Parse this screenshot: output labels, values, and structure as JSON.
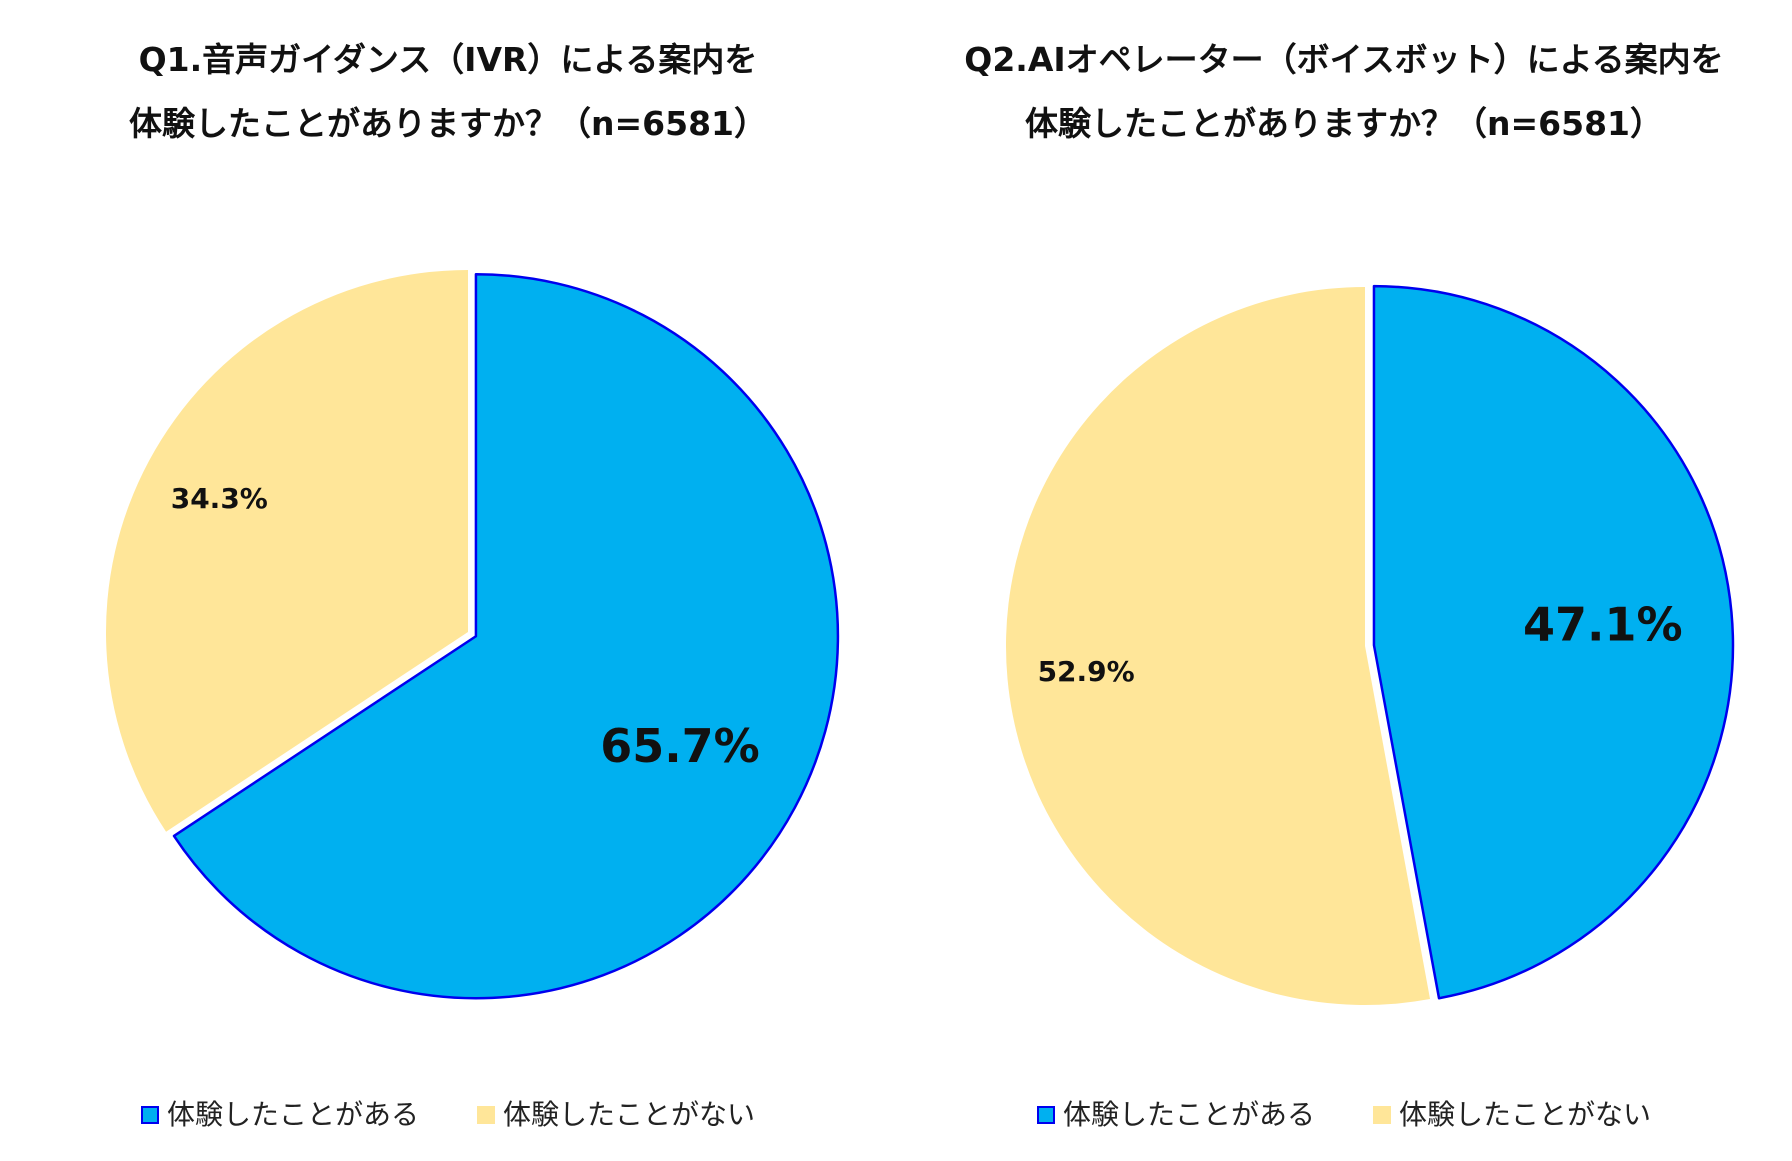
{
  "chart_data": [
    {
      "type": "pie",
      "title_lines": [
        "Q1.音声ガイダンス（IVR）による案内を",
        "体験したことがありますか？（n=6581）"
      ],
      "slices": [
        {
          "label": "体験したことがある",
          "value": 65.7,
          "value_label": "65.7%",
          "color": "#00B0F0",
          "outline": "#0000EE",
          "label_emphasis": "large",
          "exploded": true
        },
        {
          "label": "体験したことがない",
          "value": 34.3,
          "value_label": "34.3%",
          "color": "#FFE699",
          "outline": "",
          "label_emphasis": "normal",
          "exploded": false
        }
      ],
      "legend": {
        "position": "bottom",
        "entries": [
          "体験したことがある",
          "体験したことがない"
        ]
      }
    },
    {
      "type": "pie",
      "title_lines": [
        "Q2.AIオペレーター（ボイスボット）による案内を",
        "体験したことがありますか？（n=6581）"
      ],
      "slices": [
        {
          "label": "体験したことがある",
          "value": 47.1,
          "value_label": "47.1%",
          "color": "#00B0F0",
          "outline": "#0000EE",
          "label_emphasis": "large",
          "exploded": true
        },
        {
          "label": "体験したことがない",
          "value": 52.9,
          "value_label": "52.9%",
          "color": "#FFE699",
          "outline": "",
          "label_emphasis": "normal",
          "exploded": false
        }
      ],
      "legend": {
        "position": "bottom",
        "entries": [
          "体験したことがある",
          "体験したことがない"
        ]
      }
    }
  ]
}
